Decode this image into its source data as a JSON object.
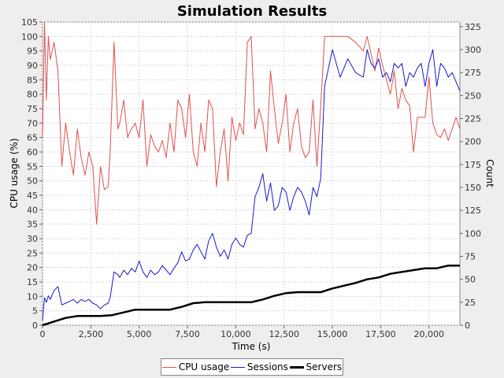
{
  "chart_data": {
    "type": "line",
    "title": "Simulation Results",
    "xlabel": "Time (s)",
    "ylabel_left": "CPU usage (%)",
    "ylabel_right": "Count",
    "xlim": [
      0,
      21600
    ],
    "ylim_left": [
      0,
      105
    ],
    "ylim_right": [
      0,
      330
    ],
    "x_ticks": [
      "0",
      "2,500",
      "5,000",
      "7,500",
      "10,000",
      "12,500",
      "15,000",
      "17,500",
      "20,000"
    ],
    "y_left_ticks": [
      "0",
      "5",
      "10",
      "15",
      "20",
      "25",
      "30",
      "35",
      "40",
      "45",
      "50",
      "55",
      "60",
      "65",
      "70",
      "75",
      "80",
      "85",
      "90",
      "95",
      "100",
      "105"
    ],
    "y_right_ticks": [
      "0",
      "25",
      "50",
      "75",
      "100",
      "125",
      "150",
      "175",
      "200",
      "225",
      "250",
      "275",
      "300",
      "325"
    ],
    "grid": true,
    "legend_position": "bottom",
    "series": [
      {
        "name": "CPU usage",
        "axis": "left",
        "color": "#e05050",
        "x": [
          0,
          100,
          200,
          300,
          400,
          600,
          800,
          1000,
          1200,
          1400,
          1600,
          1800,
          2000,
          2200,
          2400,
          2600,
          2800,
          3000,
          3200,
          3400,
          3500,
          3700,
          3900,
          4000,
          4200,
          4400,
          4600,
          4800,
          5000,
          5200,
          5400,
          5600,
          5800,
          6000,
          6200,
          6400,
          6600,
          6800,
          7000,
          7200,
          7400,
          7600,
          7800,
          8000,
          8200,
          8400,
          8600,
          8800,
          9000,
          9200,
          9400,
          9600,
          9800,
          10000,
          10200,
          10400,
          10600,
          10800,
          11000,
          11200,
          11400,
          11600,
          11800,
          12000,
          12200,
          12400,
          12600,
          12800,
          13000,
          13200,
          13400,
          13600,
          13800,
          14000,
          14200,
          14400,
          14600,
          15000,
          15400,
          15800,
          16200,
          16600,
          16800,
          17000,
          17200,
          17400,
          17600,
          17800,
          18000,
          18200,
          18400,
          18600,
          18800,
          19000,
          19200,
          19400,
          19600,
          19800,
          20000,
          20200,
          20400,
          20600,
          20800,
          21000,
          21200,
          21400,
          21600
        ],
        "values": [
          65,
          105,
          78,
          100,
          92,
          98,
          88,
          55,
          70,
          60,
          52,
          68,
          58,
          52,
          60,
          55,
          35,
          55,
          47,
          48,
          60,
          98,
          68,
          70,
          78,
          65,
          68,
          70,
          65,
          78,
          55,
          66,
          62,
          60,
          64,
          58,
          70,
          60,
          78,
          75,
          65,
          80,
          60,
          55,
          70,
          60,
          78,
          75,
          48,
          60,
          68,
          50,
          72,
          64,
          70,
          66,
          98,
          100,
          68,
          75,
          70,
          60,
          88,
          75,
          63,
          70,
          80,
          60,
          70,
          75,
          62,
          58,
          60,
          78,
          55,
          76,
          100,
          100,
          100,
          100,
          98,
          95,
          100,
          94,
          88,
          96,
          90,
          85,
          80,
          88,
          75,
          82,
          78,
          76,
          60,
          72,
          72,
          72,
          86,
          70,
          66,
          65,
          68,
          64,
          68,
          72,
          68
        ]
      },
      {
        "name": "Sessions",
        "axis": "right",
        "color": "#1a1acc",
        "x": [
          0,
          100,
          200,
          300,
          400,
          600,
          800,
          1000,
          1200,
          1400,
          1600,
          1800,
          2000,
          2200,
          2400,
          2600,
          2800,
          3000,
          3200,
          3400,
          3500,
          3700,
          3900,
          4000,
          4200,
          4400,
          4600,
          4800,
          5000,
          5200,
          5400,
          5600,
          5800,
          6000,
          6200,
          6400,
          6600,
          6800,
          7000,
          7200,
          7400,
          7600,
          7800,
          8000,
          8200,
          8400,
          8600,
          8800,
          9000,
          9200,
          9400,
          9600,
          9800,
          10000,
          10200,
          10400,
          10600,
          10800,
          11000,
          11200,
          11400,
          11600,
          11800,
          12000,
          12200,
          12400,
          12600,
          12800,
          13000,
          13200,
          13400,
          13600,
          13800,
          14000,
          14200,
          14400,
          14600,
          15000,
          15400,
          15800,
          16200,
          16600,
          16800,
          17000,
          17200,
          17400,
          17600,
          17800,
          18000,
          18200,
          18400,
          18600,
          18800,
          19000,
          19200,
          19400,
          19600,
          19800,
          20000,
          20200,
          20400,
          20600,
          20800,
          21000,
          21200,
          21400,
          21600
        ],
        "values": [
          5,
          30,
          25,
          32,
          28,
          38,
          42,
          22,
          24,
          26,
          28,
          24,
          28,
          26,
          28,
          24,
          22,
          18,
          22,
          24,
          30,
          58,
          55,
          52,
          60,
          55,
          62,
          58,
          70,
          58,
          52,
          60,
          55,
          58,
          65,
          60,
          55,
          62,
          68,
          80,
          70,
          72,
          82,
          88,
          80,
          72,
          92,
          100,
          85,
          75,
          82,
          72,
          88,
          95,
          88,
          85,
          98,
          100,
          140,
          150,
          165,
          135,
          155,
          125,
          130,
          150,
          145,
          125,
          140,
          150,
          145,
          135,
          120,
          150,
          140,
          160,
          260,
          300,
          270,
          290,
          275,
          270,
          300,
          285,
          280,
          290,
          270,
          275,
          265,
          285,
          280,
          285,
          260,
          275,
          270,
          280,
          285,
          260,
          285,
          300,
          260,
          285,
          280,
          270,
          275,
          265,
          255
        ]
      },
      {
        "name": "Servers",
        "axis": "right",
        "color": "#000000",
        "x": [
          0,
          600,
          1200,
          1800,
          2400,
          3000,
          3600,
          4200,
          4800,
          5400,
          6000,
          6600,
          7200,
          7800,
          8400,
          9000,
          9600,
          10200,
          10800,
          11400,
          12000,
          12600,
          13200,
          13800,
          14400,
          15000,
          15600,
          16200,
          16800,
          17400,
          18000,
          18600,
          19200,
          19800,
          20400,
          21000,
          21600
        ],
        "values": [
          0,
          4,
          8,
          10,
          10,
          10,
          11,
          14,
          17,
          17,
          17,
          17,
          20,
          24,
          25,
          25,
          25,
          25,
          25,
          28,
          32,
          35,
          36,
          36,
          36,
          40,
          43,
          46,
          50,
          52,
          56,
          58,
          60,
          62,
          62,
          65,
          65
        ]
      }
    ]
  },
  "legend": {
    "items": [
      {
        "label": "CPU usage",
        "color": "#e05050"
      },
      {
        "label": "Sessions",
        "color": "#1a1acc"
      },
      {
        "label": "Servers",
        "color": "#000000"
      }
    ]
  }
}
